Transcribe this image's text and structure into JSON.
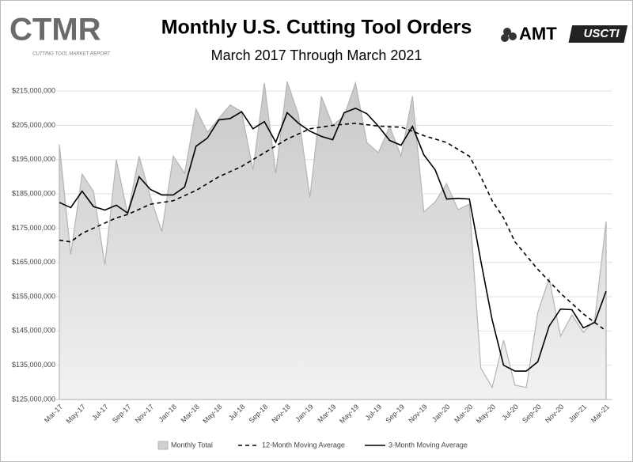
{
  "header": {
    "brand": "CTMR",
    "brand_tagline": "CUTTING TOOL MARKET REPORT",
    "logo_amt": "AMT",
    "logo_uscti": "USCTI"
  },
  "chart_data": {
    "type": "line-area",
    "title": "Monthly U.S. Cutting Tool Orders",
    "subtitle": "March 2017 Through March 2021",
    "categories": [
      "Mar-17",
      null,
      "May-17",
      null,
      "Jul-17",
      null,
      "Sep-17",
      null,
      "Nov-17",
      null,
      "Jan-18",
      null,
      "Mar-18",
      null,
      "May-18",
      null,
      "Jul-18",
      null,
      "Sep-18",
      null,
      "Nov-18",
      null,
      "Jan-19",
      null,
      "Mar-19",
      null,
      "May-19",
      null,
      "Jul-19",
      null,
      "Sep-19",
      null,
      "Nov-19",
      null,
      "Jan-20",
      null,
      "Mar-20",
      null,
      "May-20",
      null,
      "Jul-20",
      null,
      "Sep-20",
      null,
      "Nov-20",
      null,
      "Jan-21",
      null,
      "Mar-21"
    ],
    "series": [
      {
        "name": "Monthly Total",
        "kind": "area",
        "color": "#b4b4b4",
        "values": [
          199400000,
          167300000,
          190800000,
          185700000,
          164300000,
          195000000,
          179000000,
          196000000,
          184000000,
          174000000,
          196000000,
          191000000,
          209800000,
          203000000,
          207000000,
          211000000,
          209000000,
          192000000,
          217400000,
          191000000,
          217800000,
          208000000,
          184000000,
          213500000,
          205000000,
          207700000,
          217400000,
          200000000,
          197000000,
          204700000,
          196000000,
          213500000,
          179700000,
          182700000,
          188000000,
          180400000,
          182000000,
          134200000,
          128500000,
          142300000,
          129200000,
          128500000,
          150400000,
          160300000,
          143500000,
          149700000,
          144600000,
          148100000,
          177000000
        ]
      },
      {
        "name": "12-Month Moving Average",
        "kind": "line",
        "dash": "dashed",
        "color": "#000000",
        "values": [
          171500000,
          171000000,
          173500000,
          175000000,
          176500000,
          178000000,
          179000000,
          180500000,
          182000000,
          182500000,
          183000000,
          184500000,
          186000000,
          188000000,
          190000000,
          191500000,
          193000000,
          195000000,
          197000000,
          199000000,
          201000000,
          202500000,
          204000000,
          204500000,
          205000000,
          205300000,
          205600000,
          205200000,
          204800000,
          204600000,
          204500000,
          203300000,
          202000000,
          201000000,
          200000000,
          198000000,
          196000000,
          190000000,
          183000000,
          178000000,
          171000000,
          167000000,
          163000000,
          159500000,
          156000000,
          153000000,
          150000000,
          147500000,
          145000000
        ]
      },
      {
        "name": "3-Month Moving Average",
        "kind": "line",
        "dash": "solid",
        "color": "#000000",
        "values": [
          182500000,
          181000000,
          185800000,
          181300000,
          180300000,
          181700000,
          179400000,
          190000000,
          186300000,
          184700000,
          184700000,
          187000000,
          198900000,
          201300000,
          206600000,
          207000000,
          209000000,
          204000000,
          206100000,
          200100000,
          208700000,
          205600000,
          203300000,
          201800000,
          200800000,
          208700000,
          210000000,
          208400000,
          204800000,
          200600000,
          199200000,
          204700000,
          196400000,
          192000000,
          183500000,
          183700000,
          183500000,
          165500000,
          148200000,
          135000000,
          133300000,
          133300000,
          136000000,
          146400000,
          151400000,
          151200000,
          145900000,
          147500000,
          156600000
        ]
      }
    ],
    "ylim": [
      125000000,
      218500000
    ],
    "yticks": [
      {
        "value": 125000000,
        "label": "$125,000,000"
      },
      {
        "value": 135000000,
        "label": "$135,000,000"
      },
      {
        "value": 145000000,
        "label": "$145,000,000"
      },
      {
        "value": 155000000,
        "label": "$155,000,000"
      },
      {
        "value": 165000000,
        "label": "$165,000,000"
      },
      {
        "value": 175000000,
        "label": "$175,000,000"
      },
      {
        "value": 185000000,
        "label": "$185,000,000"
      },
      {
        "value": 195000000,
        "label": "$195,000,000"
      },
      {
        "value": 205000000,
        "label": "$205,000,000"
      },
      {
        "value": 215000000,
        "label": "$215,000,000"
      }
    ],
    "grid": true,
    "legend": "bottom"
  }
}
